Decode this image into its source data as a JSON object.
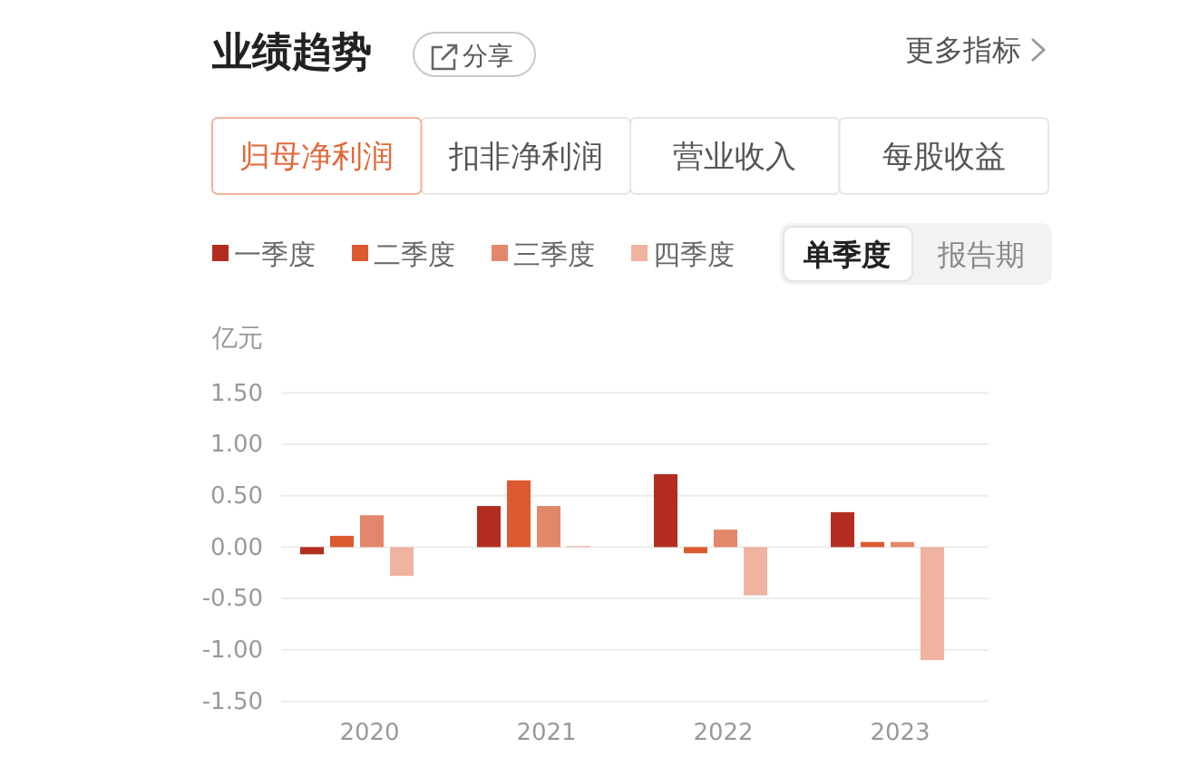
{
  "chart_data": {
    "type": "bar",
    "title": "业绩趋势",
    "ylabel": "亿元",
    "categories": [
      "2020",
      "2021",
      "2022",
      "2023"
    ],
    "series": [
      {
        "name": "一季度",
        "color": "#b22d1f",
        "values": [
          -0.07,
          0.4,
          0.71,
          0.34
        ]
      },
      {
        "name": "二季度",
        "color": "#dc5a30",
        "values": [
          0.11,
          0.65,
          -0.06,
          0.05
        ]
      },
      {
        "name": "三季度",
        "color": "#e3876a",
        "values": [
          0.31,
          0.4,
          0.17,
          0.05
        ]
      },
      {
        "name": "四季度",
        "color": "#efb3a0",
        "values": [
          -0.28,
          0.01,
          -0.47,
          -1.1
        ]
      }
    ],
    "ylim": [
      -1.5,
      1.5
    ],
    "yticks": [
      {
        "value": -1.5,
        "label": "-1.50"
      },
      {
        "value": -1,
        "label": "-1.00"
      },
      {
        "value": -0.5,
        "label": "-0.50"
      },
      {
        "value": 0,
        "label": "0.00"
      },
      {
        "value": 0.5,
        "label": "0.50"
      },
      {
        "value": 1,
        "label": "1.00"
      },
      {
        "value": 1.5,
        "label": "1.50"
      }
    ],
    "grid": "y",
    "legend": "top left",
    "annotations": [
      "分享",
      "更多指标",
      "归母净利润",
      "扣非净利润",
      "营业收入",
      "每股收益",
      "单季度",
      "报告期"
    ]
  }
}
